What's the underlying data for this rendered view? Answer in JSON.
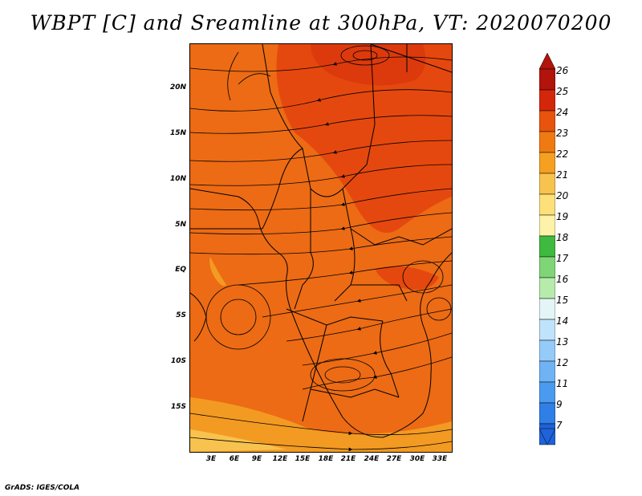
{
  "title": "WBPT [C] and Sreamline at 300hPa, VT: 2020070200",
  "footer": "GrADS: IGES/COLA",
  "axes": {
    "lat_labels": [
      "20N",
      "15N",
      "10N",
      "5N",
      "EQ",
      "5S",
      "10S",
      "15S"
    ],
    "lon_labels": [
      "3E",
      "6E",
      "9E",
      "12E",
      "15E",
      "18E",
      "21E",
      "24E",
      "27E",
      "30E",
      "33E"
    ]
  },
  "colorbar": {
    "levels": [
      "7",
      "9",
      "11",
      "12",
      "13",
      "14",
      "15",
      "16",
      "17",
      "18",
      "19",
      "20",
      "21",
      "22",
      "23",
      "24",
      "25",
      "26"
    ],
    "colors": [
      "#1f62d9",
      "#2f7fe6",
      "#4a9bf0",
      "#6fb3f5",
      "#95cbf9",
      "#bfe3fb",
      "#e3f5f5",
      "#b7ebab",
      "#7fd676",
      "#3fb93f",
      "#fdf2a8",
      "#fde07a",
      "#f8c24f",
      "#f5a020",
      "#f07a12",
      "#e8530d",
      "#d4260a",
      "#b2130a"
    ]
  },
  "colors": {
    "field_main": "#ec6b14",
    "field_warm": "#e5480e",
    "field_cool": "#f39a22",
    "coastline": "#000000",
    "streamline": "#000000"
  }
}
